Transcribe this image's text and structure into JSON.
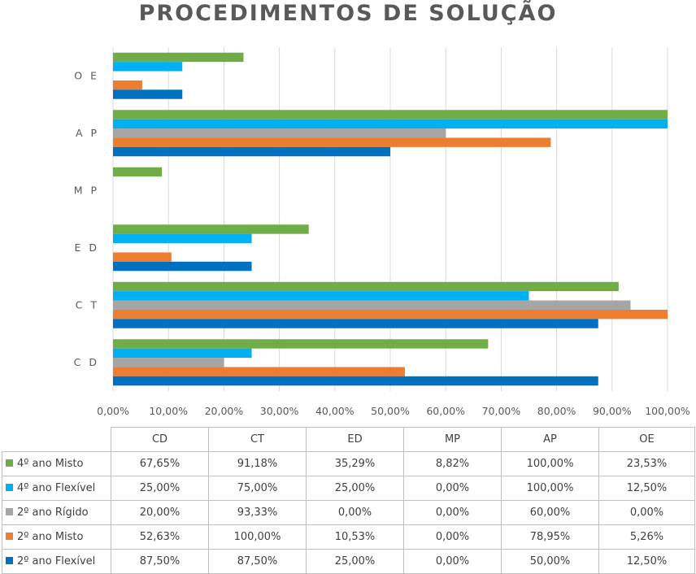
{
  "chart_data": {
    "type": "bar",
    "orientation": "horizontal",
    "title": "PROCEDIMENTOS DE SOLUÇÃO",
    "categories": [
      "CD",
      "CT",
      "ED",
      "MP",
      "AP",
      "OE"
    ],
    "category_labels": [
      "C D",
      "C T",
      "E D",
      "M P",
      "A P",
      "O E"
    ],
    "xlim": [
      0,
      100
    ],
    "x_ticks": [
      0,
      10,
      20,
      30,
      40,
      50,
      60,
      70,
      80,
      90,
      100
    ],
    "x_tick_labels": [
      "0,00%",
      "10,00%",
      "20,00%",
      "30,00%",
      "40,00%",
      "50,00%",
      "60,00%",
      "70,00%",
      "80,00%",
      "90,00%",
      "100,00%"
    ],
    "grid": true,
    "legend": "data-table-below",
    "series": [
      {
        "name": "4º ano Misto",
        "color": "#70ad47",
        "values": [
          67.65,
          91.18,
          35.29,
          8.82,
          100,
          23.53
        ],
        "labels": [
          "67,65%",
          "91,18%",
          "35,29%",
          "8,82%",
          "100,00%",
          "23,53%"
        ]
      },
      {
        "name": "4º ano Flexível",
        "color": "#00b0f0",
        "values": [
          25,
          75,
          25,
          0,
          100,
          12.5
        ],
        "labels": [
          "25,00%",
          "75,00%",
          "25,00%",
          "0,00%",
          "100,00%",
          "12,50%"
        ]
      },
      {
        "name": "2º ano Rígido",
        "color": "#a5a5a5",
        "values": [
          20,
          93.33,
          0,
          0,
          60,
          0
        ],
        "labels": [
          "20,00%",
          "93,33%",
          "0,00%",
          "0,00%",
          "60,00%",
          "0,00%"
        ]
      },
      {
        "name": "2º ano Misto",
        "color": "#ed7d31",
        "values": [
          52.63,
          100,
          10.53,
          0,
          78.95,
          5.26
        ],
        "labels": [
          "52,63%",
          "100,00%",
          "10,53%",
          "0,00%",
          "78,95%",
          "5,26%"
        ]
      },
      {
        "name": "2º ano Flexível",
        "color": "#0070c0",
        "values": [
          87.5,
          87.5,
          25,
          0,
          50,
          12.5
        ],
        "labels": [
          "87,50%",
          "87,50%",
          "25,00%",
          "0,00%",
          "50,00%",
          "12,50%"
        ]
      }
    ]
  }
}
